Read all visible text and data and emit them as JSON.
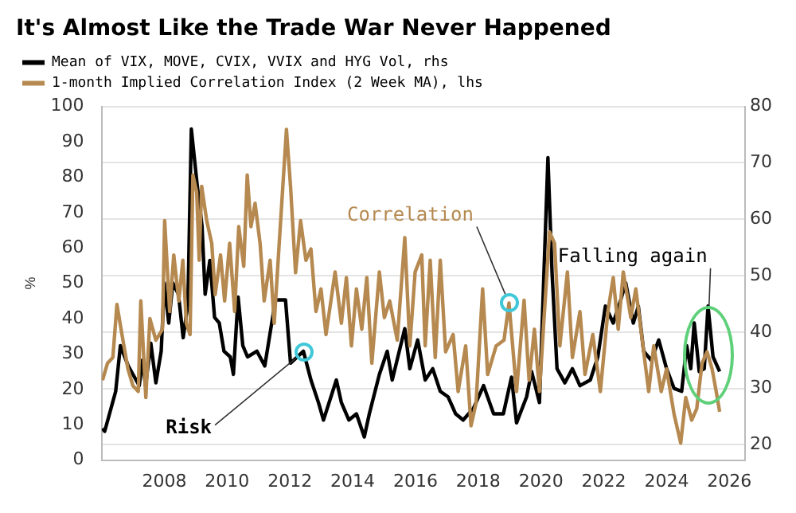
{
  "chart_data": {
    "type": "line",
    "title": "It's Almost Like the Trade War Never Happened",
    "ylabel": "%",
    "legend": "top left",
    "grid": "y",
    "xlim": [
      2006,
      2026.5
    ],
    "xticks": [
      2008,
      2010,
      2012,
      2014,
      2016,
      2018,
      2020,
      2022,
      2024,
      2026
    ],
    "ylim": [
      0,
      100
    ],
    "yticks": [
      0,
      10,
      20,
      30,
      40,
      50,
      60,
      70,
      80,
      90,
      100
    ],
    "y2lim": [
      17.3,
      80
    ],
    "y2ticks": [
      20,
      30,
      40,
      50,
      60,
      70,
      80
    ],
    "series": [
      {
        "name": "Mean of VIX, MOVE, CVIX, VVIX and HYG Vol, rhs",
        "color": "#000000",
        "axis": "y2",
        "x": [
          2006.03,
          2006.1,
          2006.45,
          2006.6,
          2006.85,
          2007.0,
          2007.2,
          2007.3,
          2007.4,
          2007.57,
          2007.73,
          2007.9,
          2008.0,
          2008.14,
          2008.27,
          2008.45,
          2008.6,
          2008.75,
          2008.86,
          2009.05,
          2009.2,
          2009.3,
          2009.45,
          2009.6,
          2009.75,
          2009.9,
          2010.1,
          2010.2,
          2010.35,
          2010.5,
          2010.65,
          2010.95,
          2011.2,
          2011.54,
          2011.86,
          2012.02,
          2012.43,
          2012.67,
          2012.91,
          2013.07,
          2013.48,
          2013.64,
          2013.88,
          2014.12,
          2014.37,
          2014.53,
          2014.85,
          2015.1,
          2015.26,
          2015.66,
          2015.82,
          2016.07,
          2016.31,
          2016.55,
          2016.79,
          2017.04,
          2017.28,
          2017.52,
          2017.85,
          2018.17,
          2018.49,
          2018.8,
          2019.06,
          2019.22,
          2019.54,
          2019.7,
          2019.95,
          2020.22,
          2020.35,
          2020.51,
          2020.76,
          2021.0,
          2021.24,
          2021.57,
          2021.81,
          2022.05,
          2022.3,
          2022.54,
          2022.7,
          2022.94,
          2023.1,
          2023.27,
          2023.51,
          2023.75,
          2024.0,
          2024.24,
          2024.48,
          2024.64,
          2024.77,
          2024.88,
          2025.04,
          2025.2,
          2025.32,
          2025.48,
          2025.69
        ],
        "values": [
          22.9,
          22.4,
          29.5,
          37.6,
          34,
          32.5,
          30.5,
          35,
          30.5,
          38,
          31,
          36.6,
          48.7,
          41.6,
          48.7,
          46.7,
          39,
          45,
          76,
          65.9,
          58.8,
          46.7,
          52.7,
          42.6,
          41.6,
          36.6,
          35.6,
          32.5,
          46.2,
          37.6,
          35.6,
          36.6,
          34,
          45.7,
          45.7,
          34.5,
          36.6,
          31.5,
          27.5,
          24.4,
          31.5,
          27.5,
          24.4,
          25.5,
          21.4,
          25.5,
          32.5,
          36.6,
          31.5,
          40.6,
          33.5,
          38.6,
          31.5,
          33.5,
          29.5,
          28.5,
          25.5,
          24.4,
          26.5,
          30.5,
          25.5,
          25.5,
          32,
          23.9,
          28.5,
          33,
          27.5,
          70.9,
          50.7,
          33.5,
          31,
          33.5,
          30.5,
          31.5,
          35.6,
          44.6,
          41.6,
          45.7,
          48.7,
          41.6,
          44.6,
          36.6,
          35,
          38.6,
          33.5,
          30,
          29.5,
          37.6,
          33.5,
          41.6,
          33,
          33.5,
          44.6,
          35.6,
          33
        ]
      },
      {
        "name": "1-month Implied Correlation Index (2 Week MA), lhs",
        "color": "#b5894f",
        "x": [
          2006.03,
          2006.19,
          2006.36,
          2006.49,
          2006.65,
          2006.84,
          2007.0,
          2007.17,
          2007.25,
          2007.41,
          2007.54,
          2007.73,
          2007.94,
          2008.01,
          2008.17,
          2008.3,
          2008.46,
          2008.59,
          2008.7,
          2008.82,
          2008.91,
          2009.03,
          2009.11,
          2009.19,
          2009.35,
          2009.51,
          2009.62,
          2009.79,
          2009.92,
          2010.08,
          2010.24,
          2010.37,
          2010.53,
          2010.64,
          2010.76,
          2010.89,
          2011.05,
          2011.18,
          2011.37,
          2011.5,
          2011.66,
          2011.89,
          2012.02,
          2012.18,
          2012.34,
          2012.51,
          2012.67,
          2012.83,
          2012.99,
          2013.15,
          2013.44,
          2013.64,
          2013.8,
          2013.96,
          2014.12,
          2014.29,
          2014.45,
          2014.61,
          2014.85,
          2015.01,
          2015.18,
          2015.42,
          2015.66,
          2015.82,
          2015.99,
          2016.2,
          2016.31,
          2016.47,
          2016.63,
          2016.79,
          2016.96,
          2017.2,
          2017.36,
          2017.6,
          2017.77,
          2017.93,
          2018.14,
          2018.3,
          2018.57,
          2018.82,
          2018.98,
          2019.22,
          2019.46,
          2019.62,
          2019.79,
          2019.95,
          2020.27,
          2020.43,
          2020.6,
          2020.84,
          2021.0,
          2021.24,
          2021.4,
          2021.65,
          2021.89,
          2022.13,
          2022.3,
          2022.46,
          2022.62,
          2022.86,
          2023.02,
          2023.18,
          2023.43,
          2023.59,
          2023.83,
          2024.0,
          2024.24,
          2024.45,
          2024.61,
          2024.8,
          2024.96,
          2025.13,
          2025.29,
          2025.45,
          2025.58,
          2025.69
        ],
        "values": [
          22.6,
          27.4,
          29,
          44,
          35.5,
          25.8,
          21,
          19.4,
          45,
          17.7,
          40,
          33.9,
          37,
          67.7,
          42,
          58,
          45,
          56.5,
          38.7,
          35.5,
          80.6,
          75.8,
          56.5,
          77.4,
          67.7,
          61.3,
          46.8,
          58,
          45,
          61.3,
          42,
          66,
          54.8,
          80.6,
          66,
          72.6,
          61.3,
          45,
          56.5,
          38.7,
          61.3,
          93.5,
          77.4,
          53,
          67.7,
          56.5,
          59.7,
          42,
          48.4,
          35.5,
          53.2,
          38.7,
          51.6,
          32.3,
          48.4,
          37,
          51.6,
          27.4,
          53.2,
          40.3,
          45,
          33.9,
          62.9,
          32.3,
          53.2,
          58,
          32.3,
          56.5,
          29,
          56.5,
          30.6,
          35.5,
          19.4,
          32.3,
          9.7,
          16.1,
          48.4,
          24.2,
          32.3,
          33.9,
          44.4,
          19.4,
          45.2,
          22.6,
          37,
          19.4,
          64.5,
          61.3,
          32.3,
          53.2,
          29,
          42,
          24.2,
          35.5,
          19.4,
          42,
          51.6,
          37,
          53.2,
          40.3,
          48.4,
          37,
          19.4,
          32.3,
          19.4,
          25.8,
          12.9,
          4.8,
          17.7,
          11.3,
          14.5,
          27.4,
          30.6,
          25.8,
          19.4,
          13.7
        ]
      }
    ],
    "annotations": [
      {
        "text": "Risk",
        "x": 2012.43,
        "y": 30.6
      },
      {
        "text": "Correlation",
        "x": 2018.98,
        "y": 44.4
      },
      {
        "text": "Falling again",
        "x": 2025.35,
        "y": 43
      }
    ]
  }
}
